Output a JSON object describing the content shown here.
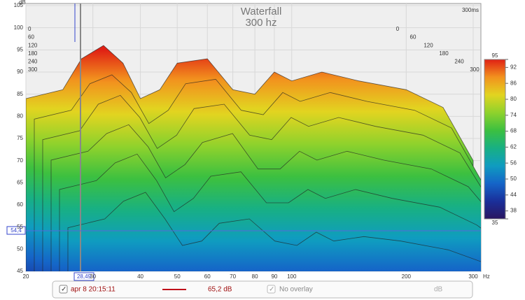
{
  "chart_data": {
    "type": "waterfall",
    "title": "Waterfall",
    "subtitle": "300 hz",
    "time_span_label": "300ms",
    "y_unit": "dB",
    "x_unit": "Hz",
    "xlim": [
      20,
      300
    ],
    "xticks": [
      20,
      30,
      40,
      50,
      60,
      70,
      80,
      90,
      100,
      200,
      300
    ],
    "log_x": true,
    "ylim": [
      45,
      105
    ],
    "yticks": [
      45,
      50,
      55,
      60,
      65,
      70,
      75,
      80,
      85,
      90,
      95,
      100,
      105
    ],
    "grid": true,
    "z": [
      0,
      60,
      120,
      180,
      240,
      300
    ],
    "x": [
      20,
      25,
      28,
      32,
      36,
      40,
      45,
      50,
      60,
      70,
      80,
      90,
      100,
      120,
      150,
      200,
      250,
      300
    ],
    "slices": [
      [
        84,
        86,
        93,
        96,
        92,
        84,
        86,
        92,
        93,
        86,
        85,
        90,
        88,
        90,
        88,
        86,
        82,
        70
      ],
      [
        80,
        82,
        88,
        90,
        86,
        79,
        82,
        88,
        89,
        82,
        81,
        86,
        84,
        86,
        84,
        82,
        78,
        66
      ],
      [
        76,
        78,
        84,
        86,
        81,
        74,
        77,
        83,
        84,
        77,
        76,
        81,
        79,
        81,
        79,
        77,
        73,
        62
      ],
      [
        72,
        74,
        78,
        80,
        75,
        68,
        71,
        76,
        78,
        70,
        70,
        74,
        72,
        74,
        72,
        70,
        66,
        58
      ],
      [
        66,
        68,
        72,
        74,
        68,
        61,
        64,
        69,
        70,
        63,
        63,
        66,
        64,
        66,
        64,
        62,
        58,
        53
      ],
      [
        58,
        60,
        64,
        66,
        60,
        54,
        55,
        59,
        60,
        55,
        54,
        57,
        55,
        56,
        55,
        53,
        50,
        47
      ]
    ],
    "clim": [
      35,
      95
    ],
    "cticks": [
      35,
      38,
      44,
      50,
      56,
      62,
      68,
      74,
      80,
      86,
      92,
      95
    ],
    "colormap": [
      "#2a1560",
      "#1a2f9a",
      "#1565c8",
      "#0f9cc0",
      "#18b083",
      "#3cc040",
      "#8fd22c",
      "#e2d420",
      "#f2921e",
      "#e02014"
    ],
    "cursor_x_label": "28,49",
    "cursor_y_label": "54,4",
    "legend": {
      "name": "apr 8 20:15:11",
      "color": "#c0101a",
      "value": "65,2 dB",
      "overlay": "No overlay",
      "unit": "dB"
    }
  }
}
